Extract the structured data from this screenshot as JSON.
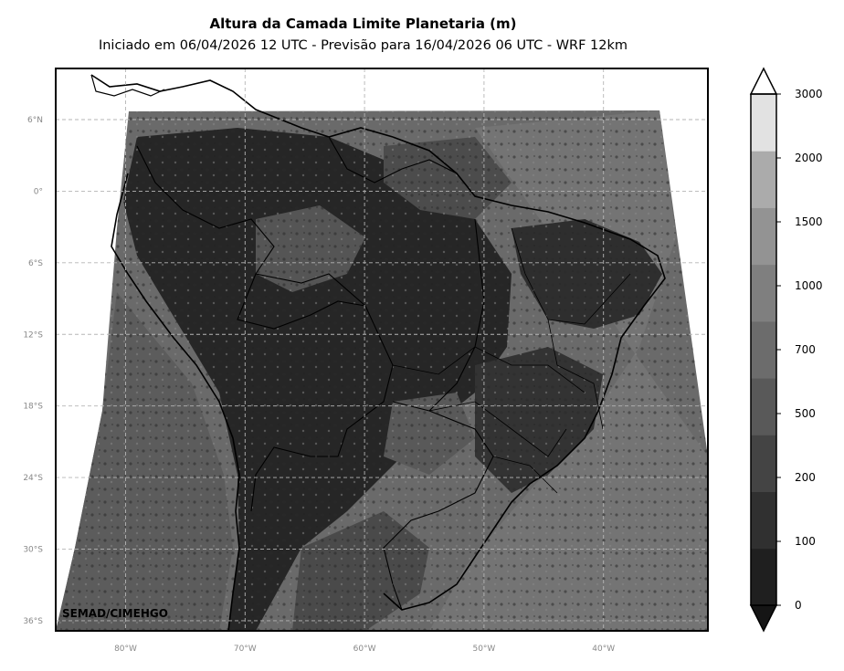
{
  "title": "Altura da Camada Limite Planetaria (m)",
  "subtitle": "Iniciado em 06/04/2026 12 UTC - Previsão para 16/04/2026 06 UTC - WRF 12km",
  "credit": "SEMAD/CIMEHGO",
  "lat_ticks": [
    {
      "value": 6,
      "label": "6°N"
    },
    {
      "value": 0,
      "label": "0°"
    },
    {
      "value": -6,
      "label": "6°S"
    },
    {
      "value": -12,
      "label": "12°S"
    },
    {
      "value": -18,
      "label": "18°S"
    },
    {
      "value": -24,
      "label": "24°S"
    },
    {
      "value": -30,
      "label": "30°S"
    },
    {
      "value": -36,
      "label": "36°S"
    }
  ],
  "lon_ticks": [
    {
      "value": -80,
      "label": "80°W"
    },
    {
      "value": -70,
      "label": "70°W"
    },
    {
      "value": -60,
      "label": "60°W"
    },
    {
      "value": -50,
      "label": "50°W"
    },
    {
      "value": -40,
      "label": "40°W"
    }
  ],
  "colorbar": {
    "levels": [
      "0",
      "100",
      "200",
      "500",
      "700",
      "1000",
      "1500",
      "2000",
      "3000"
    ],
    "colors": [
      "#1f1f1f",
      "#303030",
      "#444444",
      "#595959",
      "#6c6c6c",
      "#7f7f7f",
      "#939393",
      "#ababab",
      "#e2e2e2"
    ],
    "under_color": "#151515",
    "over_color": "#ffffff"
  }
}
